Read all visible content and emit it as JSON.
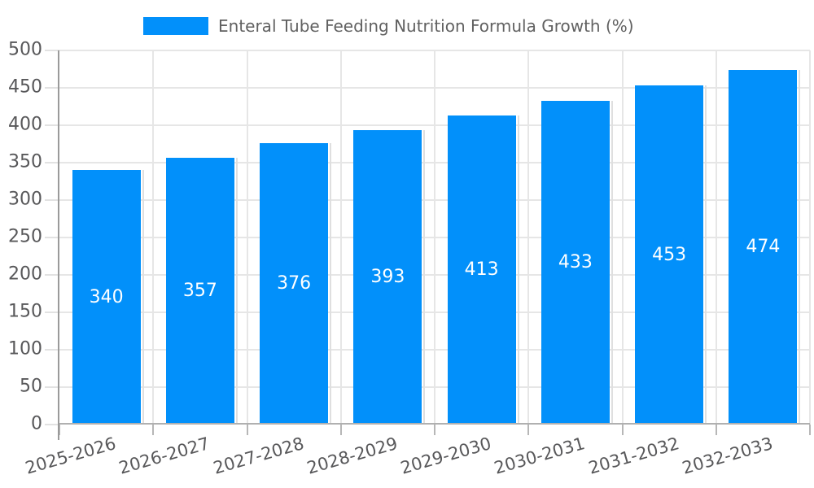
{
  "legend": {
    "label": "Enteral Tube Feeding Nutrition Formula Growth (%)"
  },
  "chart_data": {
    "type": "bar",
    "title": "Enteral Tube Feeding Nutrition Formula Growth (%)",
    "categories": [
      "2025-2026",
      "2026-2027",
      "2027-2028",
      "2028-2029",
      "2029-2030",
      "2030-2031",
      "2031-2032",
      "2032-2033"
    ],
    "values": [
      340,
      357,
      376,
      393,
      413,
      433,
      453,
      474
    ],
    "value_labels": [
      "340",
      "357",
      "376",
      "393",
      "413",
      "433",
      "453",
      "474"
    ],
    "xlabel": "",
    "ylabel": "",
    "ylim": [
      0,
      500
    ],
    "ytick_step": 50,
    "yticks": [
      0,
      50,
      100,
      150,
      200,
      250,
      300,
      350,
      400,
      450,
      500
    ],
    "grid": true,
    "legend_position": "top",
    "bar_label_position": "inside-center"
  },
  "colors": {
    "bar": "#0290fa",
    "bar_value_text": "#ffffff",
    "gridline": "#e6e6e6",
    "axis_line": "#9a9a9a",
    "baseline": "#b0b0b0",
    "axis_text": "#58585a",
    "legend_text": "#616161",
    "background": "#ffffff"
  }
}
